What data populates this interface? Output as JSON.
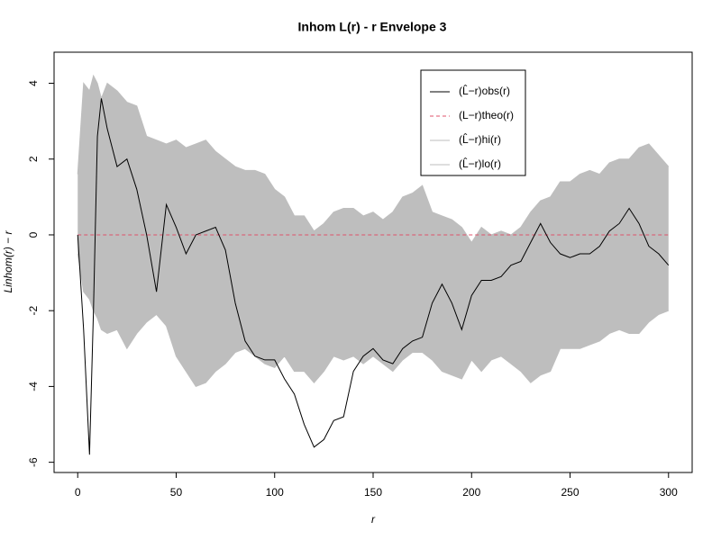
{
  "chart_data": {
    "type": "envelope",
    "title": "Inhom L(r) - r Envelope 3",
    "x_label": "r",
    "y_label": "Linhom(r) − r",
    "x": [
      0,
      3,
      6,
      8,
      10,
      12,
      15,
      20,
      25,
      30,
      35,
      40,
      45,
      50,
      55,
      60,
      65,
      70,
      75,
      80,
      85,
      90,
      95,
      100,
      105,
      110,
      115,
      120,
      125,
      130,
      135,
      140,
      145,
      150,
      155,
      160,
      165,
      170,
      175,
      180,
      185,
      190,
      195,
      200,
      205,
      210,
      215,
      220,
      225,
      230,
      235,
      240,
      245,
      250,
      255,
      260,
      265,
      270,
      275,
      280,
      285,
      290,
      295,
      300
    ],
    "series": [
      {
        "name": "(L̂−r)obs(r)",
        "color": "#000000",
        "style": "solid",
        "values": [
          0,
          -2.5,
          -5.8,
          -2.0,
          2.6,
          3.6,
          2.8,
          1.8,
          2.0,
          1.2,
          0.0,
          -1.5,
          0.8,
          0.2,
          -0.5,
          0.0,
          0.1,
          0.2,
          -0.4,
          -1.8,
          -2.8,
          -3.2,
          -3.3,
          -3.3,
          -3.8,
          -4.2,
          -5.0,
          -5.6,
          -5.4,
          -4.9,
          -4.8,
          -3.6,
          -3.2,
          -3.0,
          -3.3,
          -3.4,
          -3.0,
          -2.8,
          -2.7,
          -1.8,
          -1.3,
          -1.8,
          -2.5,
          -1.6,
          -1.2,
          -1.2,
          -1.1,
          -0.8,
          -0.7,
          -0.2,
          0.3,
          -0.2,
          -0.5,
          -0.6,
          -0.5,
          -0.5,
          -0.3,
          0.1,
          0.3,
          0.7,
          0.3,
          -0.3,
          -0.5,
          -0.8
        ]
      },
      {
        "name": "(L−r)theo(r)",
        "color": "#DF536B",
        "style": "dashed",
        "values": [
          0,
          0,
          0,
          0,
          0,
          0,
          0,
          0,
          0,
          0,
          0,
          0,
          0,
          0,
          0,
          0,
          0,
          0,
          0,
          0,
          0,
          0,
          0,
          0,
          0,
          0,
          0,
          0,
          0,
          0,
          0,
          0,
          0,
          0,
          0,
          0,
          0,
          0,
          0,
          0,
          0,
          0,
          0,
          0,
          0,
          0,
          0,
          0,
          0,
          0,
          0,
          0,
          0,
          0,
          0,
          0,
          0,
          0,
          0,
          0,
          0,
          0,
          0,
          0
        ]
      },
      {
        "name": "(L̂−r)hi(r)",
        "color": "#BEBEBE",
        "style": "solid",
        "values": [
          1.6,
          4.0,
          3.8,
          4.2,
          4.0,
          3.6,
          4.0,
          3.8,
          3.5,
          3.4,
          2.6,
          2.5,
          2.4,
          2.5,
          2.3,
          2.4,
          2.5,
          2.2,
          2.0,
          1.8,
          1.7,
          1.7,
          1.6,
          1.2,
          1.0,
          0.5,
          0.5,
          0.1,
          0.3,
          0.6,
          0.7,
          0.7,
          0.5,
          0.6,
          0.4,
          0.6,
          1.0,
          1.1,
          1.3,
          0.6,
          0.5,
          0.4,
          0.2,
          -0.2,
          0.2,
          0.0,
          0.1,
          0.0,
          0.2,
          0.6,
          0.9,
          1.0,
          1.4,
          1.4,
          1.6,
          1.7,
          1.6,
          1.9,
          2.0,
          2.0,
          2.3,
          2.4,
          2.1,
          1.8
        ]
      },
      {
        "name": "(L̂−r)lo(r)",
        "color": "#BEBEBE",
        "style": "solid",
        "values": [
          -0.5,
          -1.5,
          -1.7,
          -2.0,
          -2.2,
          -2.5,
          -2.6,
          -2.5,
          -3.0,
          -2.6,
          -2.3,
          -2.1,
          -2.4,
          -3.2,
          -3.6,
          -4.0,
          -3.9,
          -3.6,
          -3.4,
          -3.1,
          -3.0,
          -3.2,
          -3.4,
          -3.5,
          -3.2,
          -3.6,
          -3.6,
          -3.9,
          -3.6,
          -3.2,
          -3.3,
          -3.2,
          -3.4,
          -3.2,
          -3.4,
          -3.6,
          -3.3,
          -3.1,
          -3.1,
          -3.3,
          -3.6,
          -3.7,
          -3.8,
          -3.3,
          -3.6,
          -3.3,
          -3.2,
          -3.4,
          -3.6,
          -3.9,
          -3.7,
          -3.6,
          -3.0,
          -3.0,
          -3.0,
          -2.9,
          -2.8,
          -2.6,
          -2.5,
          -2.6,
          -2.6,
          -2.3,
          -2.1,
          -2.0
        ]
      }
    ],
    "xlim": [
      -12,
      312
    ],
    "ylim": [
      -6.27,
      4.82
    ],
    "xticks": [
      0,
      50,
      100,
      150,
      200,
      250,
      300
    ],
    "yticks": [
      -6,
      -4,
      -2,
      0,
      2,
      4
    ],
    "legend": "top-right"
  }
}
